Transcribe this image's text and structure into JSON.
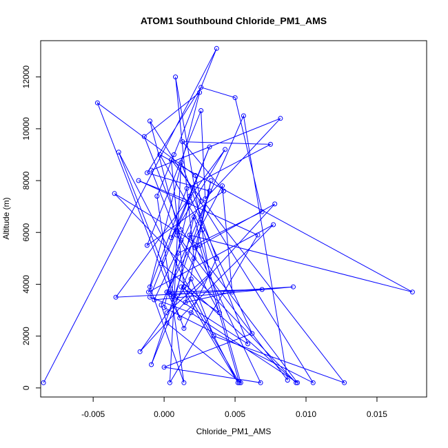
{
  "chart_data": {
    "type": "line",
    "title": "ATOM1 Southbound Chloride_PM1_AMS",
    "xlabel": "Chloride_PM1_AMS",
    "ylabel": "Altitude (m)",
    "xlim": [
      -0.0087,
      0.0185
    ],
    "ylim": [
      -350,
      13400
    ],
    "x_ticks": [
      -0.005,
      0.0,
      0.005,
      0.01,
      0.015
    ],
    "x_tick_labels": [
      "-0.005",
      "0.000",
      "0.005",
      "0.010",
      "0.015"
    ],
    "y_ticks": [
      0,
      2000,
      4000,
      6000,
      8000,
      10000,
      12000
    ],
    "y_tick_labels": [
      "0",
      "2000",
      "4000",
      "6000",
      "8000",
      "10000",
      "12000"
    ],
    "grid": false,
    "legend": "none",
    "marker": "open-circle",
    "color": "#0000ff",
    "x": [
      -0.0085,
      0.0037,
      0.0007,
      -0.0005,
      0.0014,
      -0.001,
      0.0025,
      -0.0014,
      0.0012,
      0.0094,
      0.0019,
      -0.001,
      0.0032,
      -0.0002,
      0.0093,
      -0.0035,
      0.0025,
      0.0053,
      0.0014,
      0.0005,
      0.0127,
      0.0035,
      0.0019,
      -0.0017,
      0.0078,
      0.0022,
      0.0033,
      0.0015,
      0.0048,
      0.0041,
      0.0002,
      0.0069,
      -0.0034,
      0.0043,
      0.0005,
      0.0018,
      0.0062,
      0.0,
      0.0068,
      0.0018,
      0.0175,
      -0.0003,
      0.0027,
      0.0059,
      0.0002,
      0.0011,
      0.0077,
      -0.0011,
      0.0016,
      0.0075,
      0.0013,
      0.0042,
      -0.0012,
      0.0026,
      0.0029,
      0.0082,
      -0.0009,
      0.0009,
      0.0039,
      0.0012,
      0.0052,
      -0.0032,
      0.0008,
      0.0021,
      0.0054,
      0.0002,
      -0.0002,
      0.0056,
      0.0087,
      0.0012,
      -0.001,
      0.0105,
      0.0,
      0.0018,
      -0.0018,
      0.0066,
      0.0004,
      0.0012,
      0.0037,
      0.0014,
      -0.0047,
      0.0022,
      0.0026,
      -0.0007,
      0.0091,
      0.0005,
      0.001,
      0.0069,
      0.005,
      0.0026,
      -0.0012,
      0.0032,
      -0.0009,
      0.0021,
      0.0008,
      0.0032,
      0.0002
    ],
    "y": [
      200,
      13100,
      9000,
      7400,
      200,
      3900,
      11400,
      9700,
      6100,
      200,
      2900,
      3500,
      9300,
      4800,
      200,
      7500,
      5500,
      200,
      3900,
      8800,
      200,
      2000,
      4200,
      1400,
      7100,
      5400,
      8000,
      3300,
      3700,
      7800,
      3700,
      3800,
      3500,
      9200,
      5800,
      7400,
      2100,
      800,
      200,
      5900,
      3700,
      9000,
      6100,
      1700,
      3700,
      2700,
      6300,
      3700,
      7700,
      9400,
      9500,
      7600,
      5500,
      10700,
      7300,
      10400,
      8400,
      5900,
      2900,
      3900,
      200,
      9100,
      3500,
      6600,
      200,
      2500,
      3200,
      10500,
      300,
      5700,
      10300,
      200,
      3100,
      7200,
      8000,
      5900,
      200,
      8700,
      5000,
      2300,
      11000,
      8200,
      7200,
      3400,
      3900,
      3600,
      5200,
      6800,
      11200,
      11600,
      8300,
      7600,
      900,
      5000,
      12000,
      4400,
      2900
    ]
  }
}
